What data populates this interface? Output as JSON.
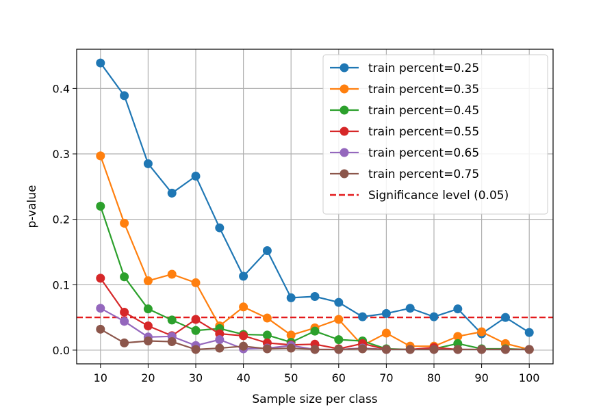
{
  "chart_data": {
    "type": "line",
    "title": "",
    "xlabel": "Sample size per class",
    "ylabel": "p-value",
    "xlim": [
      5,
      105
    ],
    "ylim": [
      -0.021,
      0.46
    ],
    "xticks": [
      10,
      20,
      30,
      40,
      50,
      60,
      70,
      80,
      90,
      100
    ],
    "yticks": [
      0.0,
      0.1,
      0.2,
      0.3,
      0.4
    ],
    "ytick_labels": [
      "0.0",
      "0.1",
      "0.2",
      "0.3",
      "0.4"
    ],
    "grid": true,
    "legend_position": "top-right",
    "x": [
      10,
      15,
      20,
      25,
      30,
      35,
      40,
      45,
      50,
      55,
      60,
      65,
      70,
      75,
      80,
      85,
      90,
      95,
      100
    ],
    "series": [
      {
        "name": "train percent=0.25",
        "color": "#1f77b4",
        "values": [
          0.439,
          0.389,
          0.285,
          0.24,
          0.266,
          0.187,
          0.113,
          0.152,
          0.08,
          0.082,
          0.073,
          0.051,
          0.056,
          0.064,
          0.051,
          0.063,
          0.025,
          0.05,
          0.027
        ]
      },
      {
        "name": "train percent=0.35",
        "color": "#ff7f0e",
        "values": [
          0.297,
          0.194,
          0.106,
          0.116,
          0.103,
          0.037,
          0.066,
          0.049,
          0.023,
          0.034,
          0.047,
          0.007,
          0.026,
          0.006,
          0.006,
          0.021,
          0.028,
          0.01,
          0.001
        ]
      },
      {
        "name": "train percent=0.45",
        "color": "#2ca02c",
        "values": [
          0.22,
          0.112,
          0.063,
          0.046,
          0.03,
          0.033,
          0.024,
          0.023,
          0.012,
          0.029,
          0.016,
          0.014,
          0.002,
          0.001,
          0.002,
          0.01,
          0.002,
          0.002,
          0.001
        ]
      },
      {
        "name": "train percent=0.55",
        "color": "#d62728",
        "values": [
          0.11,
          0.058,
          0.037,
          0.022,
          0.047,
          0.025,
          0.022,
          0.011,
          0.008,
          0.009,
          0.002,
          0.01,
          0.001,
          0.001,
          0.004,
          0.001,
          0.001,
          0.001,
          0.001
        ]
      },
      {
        "name": "train percent=0.65",
        "color": "#9467bd",
        "values": [
          0.064,
          0.044,
          0.02,
          0.021,
          0.007,
          0.016,
          0.002,
          0.003,
          0.007,
          0.001,
          0.001,
          0.003,
          0.001,
          0.001,
          0.001,
          0.001,
          0.001,
          0.001,
          0.001
        ]
      },
      {
        "name": "train percent=0.75",
        "color": "#8c564b",
        "values": [
          0.032,
          0.011,
          0.014,
          0.013,
          0.001,
          0.003,
          0.006,
          0.002,
          0.003,
          0.001,
          0.001,
          0.002,
          0.001,
          0.001,
          0.001,
          0.001,
          0.001,
          0.001,
          0.001
        ]
      }
    ],
    "reference_line": {
      "name": "Significance level (0.05)",
      "value": 0.05,
      "color": "#e31a1c",
      "style": "dashed"
    }
  }
}
